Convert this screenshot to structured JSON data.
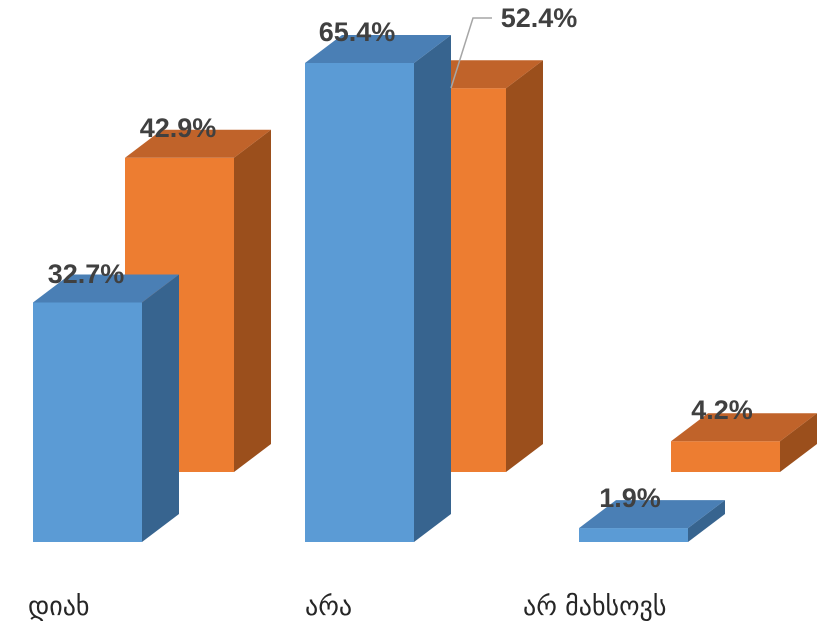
{
  "chart_data": {
    "type": "bar",
    "title": "",
    "xlabel": "",
    "ylabel": "",
    "categories": [
      "დიახ",
      "არა",
      "არ მახსოვს"
    ],
    "series": [
      {
        "values": [
          32.7,
          65.4,
          1.9
        ],
        "labels": [
          "32.7%",
          "65.4%",
          "1.9%"
        ],
        "color": "#5b9bd5",
        "side_color": "#37648f",
        "top_color": "#4a7fb5"
      },
      {
        "values": [
          42.9,
          52.4,
          4.2
        ],
        "labels": [
          "42.9%",
          "52.4%",
          "4.2%"
        ],
        "color": "#ed7d31",
        "side_color": "#9b4f1c",
        "top_color": "#c0632a"
      }
    ],
    "ylim": [
      0,
      65.4
    ],
    "grid": false,
    "legend": "none",
    "three_d": true
  }
}
